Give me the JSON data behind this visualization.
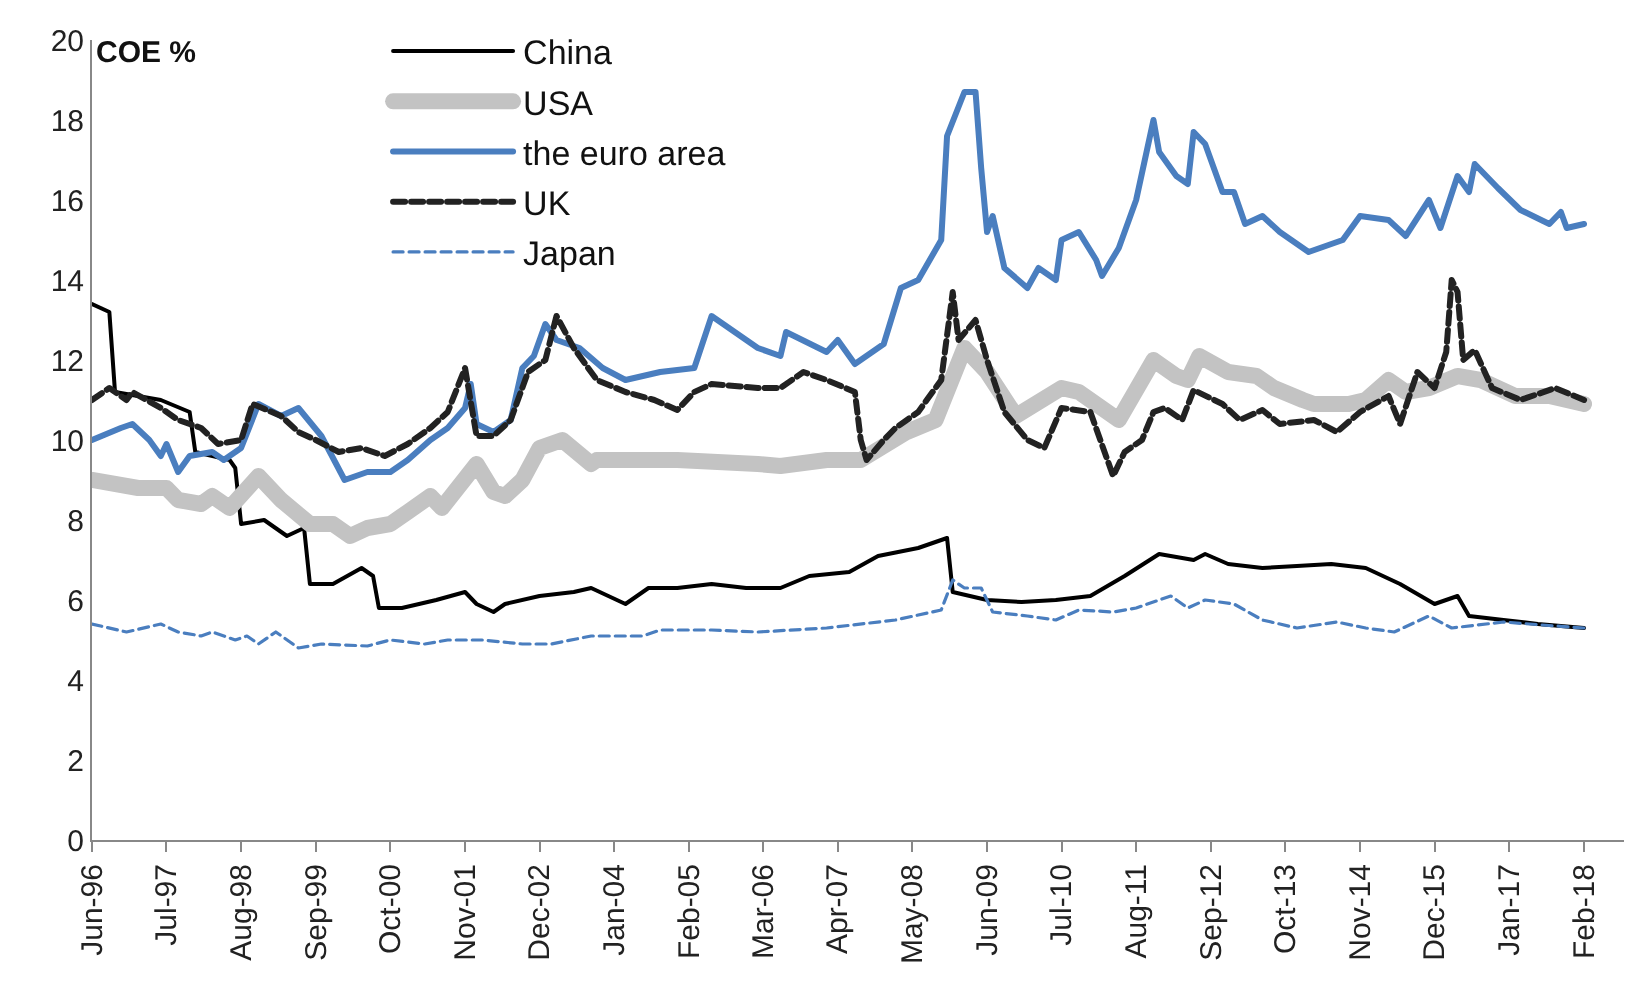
{
  "chart_data": {
    "type": "line",
    "ylabel": "COE %",
    "xlim": [
      "1996-06",
      "2018-09"
    ],
    "xticks": [
      {
        "value": "1996-06",
        "label": "Jun-96"
      },
      {
        "value": "1997-07",
        "label": "Jul-97"
      },
      {
        "value": "1998-08",
        "label": "Aug-98"
      },
      {
        "value": "1999-09",
        "label": "Sep-99"
      },
      {
        "value": "2000-10",
        "label": "Oct-00"
      },
      {
        "value": "2001-11",
        "label": "Nov-01"
      },
      {
        "value": "2002-12",
        "label": "Dec-02"
      },
      {
        "value": "2004-01",
        "label": "Jan-04"
      },
      {
        "value": "2005-02",
        "label": "Feb-05"
      },
      {
        "value": "2006-03",
        "label": "Mar-06"
      },
      {
        "value": "2007-04",
        "label": "Apr-07"
      },
      {
        "value": "2008-05",
        "label": "May-08"
      },
      {
        "value": "2009-06",
        "label": "Jun-09"
      },
      {
        "value": "2010-07",
        "label": "Jul-10"
      },
      {
        "value": "2011-08",
        "label": "Aug-11"
      },
      {
        "value": "2012-09",
        "label": "Sep-12"
      },
      {
        "value": "2013-10",
        "label": "Oct-13"
      },
      {
        "value": "2014-11",
        "label": "Nov-14"
      },
      {
        "value": "2015-12",
        "label": "Dec-15"
      },
      {
        "value": "2017-01",
        "label": "Jan-17"
      },
      {
        "value": "2018-02",
        "label": "Feb-18"
      }
    ],
    "ylim": [
      0,
      20
    ],
    "yticks": [
      0,
      2,
      4,
      6,
      8,
      10,
      12,
      14,
      16,
      18,
      20
    ],
    "grid": false,
    "legend": "top",
    "marker": "none",
    "series": [
      {
        "name": "China",
        "color": "#000000",
        "line_style": "solid",
        "x": [
          "1996-06",
          "1996-09",
          "1996-10",
          "1997-06",
          "1997-11",
          "1997-12",
          "1998-06",
          "1998-07",
          "1998-08",
          "1998-12",
          "1999-04",
          "1999-07",
          "1999-08",
          "1999-12",
          "2000-05",
          "2000-07",
          "2000-08",
          "2000-12",
          "2001-06",
          "2001-11",
          "2002-01",
          "2002-04",
          "2002-06",
          "2002-12",
          "2003-06",
          "2003-09",
          "2003-12",
          "2004-03",
          "2004-07",
          "2004-12",
          "2005-06",
          "2005-12",
          "2006-06",
          "2006-11",
          "2007-06",
          "2007-11",
          "2008-06",
          "2008-11",
          "2008-12",
          "2009-06",
          "2009-12",
          "2010-06",
          "2010-12",
          "2011-06",
          "2011-12",
          "2012-06",
          "2012-08",
          "2012-12",
          "2013-06",
          "2013-12",
          "2014-06",
          "2014-12",
          "2015-06",
          "2015-12",
          "2016-04",
          "2016-06",
          "2016-12",
          "2017-06",
          "2018-02"
        ],
        "values": [
          13.4,
          13.2,
          11.2,
          11.0,
          10.7,
          9.7,
          9.5,
          9.3,
          7.9,
          8.0,
          7.6,
          7.8,
          6.4,
          6.4,
          6.8,
          6.6,
          5.8,
          5.8,
          6.0,
          6.2,
          5.9,
          5.7,
          5.9,
          6.1,
          6.2,
          6.3,
          6.1,
          5.9,
          6.3,
          6.3,
          6.4,
          6.3,
          6.3,
          6.6,
          6.7,
          7.1,
          7.3,
          7.55,
          6.2,
          6.0,
          5.95,
          6.0,
          6.1,
          6.6,
          7.15,
          7.0,
          7.15,
          6.9,
          6.8,
          6.85,
          6.9,
          6.8,
          6.4,
          5.9,
          6.1,
          5.6,
          5.5,
          5.4,
          5.3
        ]
      },
      {
        "name": "USA",
        "color": "#c3c3c3",
        "line_style": "solid",
        "x": [
          "1996-06",
          "1997-02",
          "1997-07",
          "1997-09",
          "1998-01",
          "1998-03",
          "1998-06",
          "1998-11",
          "1999-03",
          "1999-08",
          "1999-12",
          "2000-03",
          "2000-06",
          "2000-10",
          "2001-01",
          "2001-05",
          "2001-07",
          "2002-01",
          "2002-04",
          "2002-06",
          "2002-09",
          "2002-12",
          "2003-04",
          "2003-09",
          "2003-10",
          "2004-12",
          "2006-02",
          "2006-06",
          "2007-02",
          "2007-08",
          "2008-04",
          "2008-09",
          "2009-02",
          "2009-06",
          "2009-11",
          "2010-07",
          "2010-10",
          "2011-05",
          "2011-11",
          "2012-03",
          "2012-05",
          "2012-07",
          "2012-12",
          "2013-05",
          "2013-08",
          "2014-01",
          "2014-03",
          "2014-09",
          "2014-12",
          "2015-04",
          "2015-07",
          "2015-11",
          "2016-04",
          "2016-08",
          "2017-02",
          "2017-08",
          "2018-02"
        ],
        "values": [
          9.0,
          8.8,
          8.8,
          8.5,
          8.4,
          8.6,
          8.3,
          9.1,
          8.5,
          7.9,
          7.9,
          7.6,
          7.8,
          7.9,
          8.2,
          8.6,
          8.3,
          9.4,
          8.7,
          8.6,
          9.0,
          9.8,
          10.0,
          9.4,
          9.5,
          9.5,
          9.4,
          9.35,
          9.5,
          9.5,
          10.2,
          10.5,
          12.3,
          11.7,
          10.6,
          11.3,
          11.2,
          10.5,
          12.0,
          11.6,
          11.5,
          12.1,
          11.7,
          11.6,
          11.3,
          11.0,
          10.9,
          10.9,
          11.0,
          11.5,
          11.2,
          11.3,
          11.6,
          11.5,
          11.1,
          11.1,
          10.9
        ]
      },
      {
        "name": "the euro area",
        "color": "#4a7ebf",
        "line_style": "solid",
        "x": [
          "1996-06",
          "1996-11",
          "1997-01",
          "1997-04",
          "1997-06",
          "1997-07",
          "1997-09",
          "1997-11",
          "1998-03",
          "1998-05",
          "1998-08",
          "1998-11",
          "1999-03",
          "1999-06",
          "1999-10",
          "2000-02",
          "2000-06",
          "2000-10",
          "2001-01",
          "2001-05",
          "2001-08",
          "2001-11",
          "2001-12",
          "2002-01",
          "2002-04",
          "2002-07",
          "2002-09",
          "2002-11",
          "2003-01",
          "2003-03",
          "2003-07",
          "2003-11",
          "2004-03",
          "2004-09",
          "2005-03",
          "2005-06",
          "2006-02",
          "2006-06",
          "2006-07",
          "2007-02",
          "2007-04",
          "2007-07",
          "2007-12",
          "2008-03",
          "2008-06",
          "2008-10",
          "2008-11",
          "2009-02",
          "2009-04",
          "2009-05",
          "2009-06",
          "2009-07",
          "2009-09",
          "2010-01",
          "2010-03",
          "2010-06",
          "2010-07",
          "2010-10",
          "2011-01",
          "2011-02",
          "2011-05",
          "2011-08",
          "2011-11",
          "2011-12",
          "2012-03",
          "2012-05",
          "2012-06",
          "2012-08",
          "2012-11",
          "2013-01",
          "2013-03",
          "2013-06",
          "2013-09",
          "2014-02",
          "2014-08",
          "2014-11",
          "2015-04",
          "2015-07",
          "2015-11",
          "2016-01",
          "2016-04",
          "2016-06",
          "2016-07",
          "2016-11",
          "2017-03",
          "2017-08",
          "2017-10",
          "2017-11",
          "2018-02"
        ],
        "values": [
          10.0,
          10.3,
          10.4,
          10.0,
          9.6,
          9.9,
          9.2,
          9.6,
          9.7,
          9.5,
          9.8,
          10.9,
          10.6,
          10.8,
          10.1,
          9.0,
          9.2,
          9.2,
          9.5,
          10.0,
          10.3,
          10.8,
          11.4,
          10.4,
          10.2,
          10.5,
          11.8,
          12.1,
          12.9,
          12.5,
          12.3,
          11.8,
          11.5,
          11.7,
          11.8,
          13.1,
          12.3,
          12.1,
          12.7,
          12.2,
          12.5,
          11.9,
          12.4,
          13.8,
          14.0,
          15.0,
          17.6,
          18.7,
          18.7,
          16.8,
          15.2,
          15.6,
          14.3,
          13.8,
          14.3,
          14.0,
          15.0,
          15.2,
          14.5,
          14.1,
          14.8,
          16.0,
          18.0,
          17.2,
          16.6,
          16.4,
          17.7,
          17.4,
          16.2,
          16.2,
          15.4,
          15.6,
          15.2,
          14.7,
          15.0,
          15.6,
          15.5,
          15.1,
          16.0,
          15.3,
          16.6,
          16.2,
          16.9,
          16.3,
          15.75,
          15.4,
          15.7,
          15.3,
          15.4
        ]
      },
      {
        "name": "UK",
        "color": "#222222",
        "line_style": "dashed",
        "x": [
          "1996-06",
          "1996-09",
          "1996-12",
          "1997-01",
          "1997-06",
          "1997-09",
          "1998-01",
          "1998-04",
          "1998-08",
          "1998-10",
          "1999-03",
          "1999-06",
          "1999-09",
          "2000-01",
          "2000-05",
          "2000-09",
          "2001-01",
          "2001-05",
          "2001-08",
          "2001-11",
          "2002-01",
          "2002-04",
          "2002-07",
          "2002-10",
          "2003-01",
          "2003-03",
          "2003-06",
          "2003-10",
          "2004-03",
          "2004-08",
          "2004-12",
          "2005-03",
          "2005-06",
          "2006-02",
          "2006-06",
          "2006-10",
          "2007-02",
          "2007-07",
          "2007-08",
          "2007-09",
          "2007-12",
          "2008-02",
          "2008-06",
          "2008-10",
          "2008-12",
          "2009-01",
          "2009-04",
          "2009-06",
          "2009-09",
          "2010-01",
          "2010-04",
          "2010-07",
          "2010-12",
          "2011-04",
          "2011-06",
          "2011-09",
          "2011-11",
          "2012-01",
          "2012-04",
          "2012-06",
          "2012-11",
          "2013-02",
          "2013-06",
          "2013-09",
          "2014-03",
          "2014-07",
          "2014-11",
          "2015-04",
          "2015-06",
          "2015-09",
          "2015-12",
          "2016-02",
          "2016-03",
          "2016-04",
          "2016-05",
          "2016-07",
          "2016-10",
          "2017-03",
          "2017-09",
          "2018-02"
        ],
        "values": [
          11.0,
          11.3,
          11.0,
          11.2,
          10.8,
          10.5,
          10.3,
          9.9,
          10.0,
          10.9,
          10.6,
          10.2,
          10.0,
          9.7,
          9.8,
          9.6,
          9.9,
          10.3,
          10.7,
          11.8,
          10.1,
          10.1,
          10.5,
          11.7,
          12.0,
          13.1,
          12.3,
          11.5,
          11.2,
          11.0,
          10.75,
          11.2,
          11.4,
          11.3,
          11.3,
          11.7,
          11.5,
          11.2,
          10.0,
          9.5,
          10.0,
          10.3,
          10.7,
          11.5,
          13.7,
          12.5,
          13.0,
          12.0,
          10.7,
          10.0,
          9.8,
          10.8,
          10.7,
          9.1,
          9.7,
          10.0,
          10.7,
          10.8,
          10.5,
          11.25,
          10.9,
          10.5,
          10.75,
          10.4,
          10.5,
          10.2,
          10.7,
          11.1,
          10.4,
          11.7,
          11.3,
          12.2,
          14.0,
          13.7,
          12.0,
          12.25,
          11.3,
          11.0,
          11.3,
          11.0
        ]
      },
      {
        "name": "Japan",
        "color": "#4a7ebf",
        "line_style": "dashed",
        "x": [
          "1996-06",
          "1996-12",
          "1997-06",
          "1997-09",
          "1998-01",
          "1998-03",
          "1998-07",
          "1998-09",
          "1998-11",
          "1999-02",
          "1999-06",
          "1999-10",
          "2000-06",
          "2000-10",
          "2001-04",
          "2001-08",
          "2002-02",
          "2002-09",
          "2003-02",
          "2003-09",
          "2004-06",
          "2004-09",
          "2005-06",
          "2006-02",
          "2007-02",
          "2008-02",
          "2008-10",
          "2008-12",
          "2009-02",
          "2009-05",
          "2009-07",
          "2010-01",
          "2010-06",
          "2010-10",
          "2011-04",
          "2011-08",
          "2012-02",
          "2012-05",
          "2012-08",
          "2013-01",
          "2013-06",
          "2013-12",
          "2014-07",
          "2014-12",
          "2015-05",
          "2015-11",
          "2016-03",
          "2016-12",
          "2017-09",
          "2018-02"
        ],
        "values": [
          5.4,
          5.2,
          5.4,
          5.2,
          5.1,
          5.2,
          5.0,
          5.1,
          4.9,
          5.2,
          4.8,
          4.9,
          4.85,
          5.0,
          4.9,
          5.0,
          5.0,
          4.9,
          4.9,
          5.1,
          5.1,
          5.25,
          5.25,
          5.2,
          5.3,
          5.5,
          5.75,
          6.5,
          6.3,
          6.3,
          5.7,
          5.6,
          5.5,
          5.75,
          5.7,
          5.8,
          6.1,
          5.8,
          6.0,
          5.9,
          5.5,
          5.3,
          5.45,
          5.3,
          5.2,
          5.6,
          5.3,
          5.45,
          5.35,
          5.3
        ]
      }
    ]
  }
}
